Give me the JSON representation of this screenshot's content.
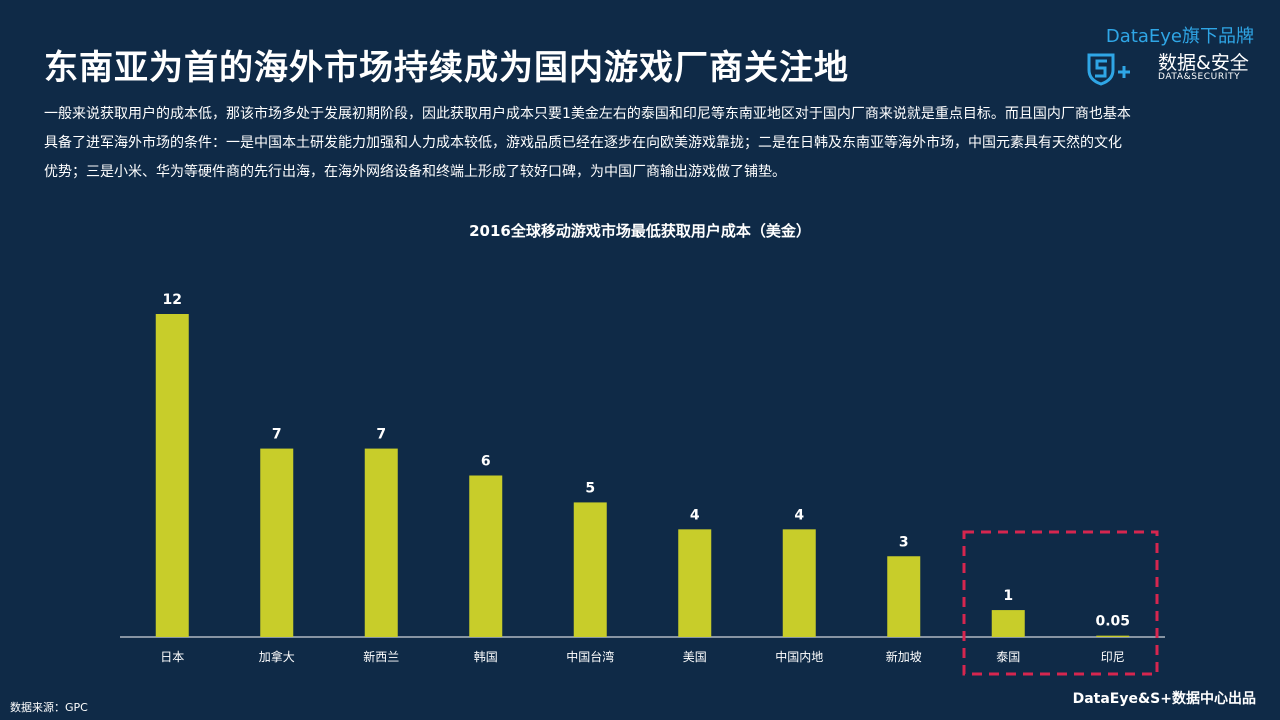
{
  "header": {
    "title": "东南亚为首的海外市场持续成为国内游戏厂商关注地",
    "brand_top": "DataEye旗下品牌",
    "brand_name": "数据&安全",
    "brand_sub": "DATA&SECURITY"
  },
  "intro": "一般来说获取用户的成本低，那该市场多处于发展初期阶段，因此获取用户成本只要1美金左右的泰国和印尼等东南亚地区对于国内厂商来说就是重点目标。而且国内厂商也基本具备了进军海外市场的条件：一是中国本土研发能力加强和人力成本较低，游戏品质已经在逐步在向欧美游戏靠拢；二是在日韩及东南亚等海外市场，中国元素具有天然的文化优势；三是小米、华为等硬件商的先行出海，在海外网络设备和终端上形成了较好口碑，为中国厂商输出游戏做了铺垫。",
  "chart_data": {
    "type": "bar",
    "title": "2016全球移动游戏市场最低获取用户成本（美金）",
    "categories": [
      "日本",
      "加拿大",
      "新西兰",
      "韩国",
      "中国台湾",
      "美国",
      "中国内地",
      "新加坡",
      "泰国",
      "印尼"
    ],
    "values": [
      12,
      7,
      7,
      6,
      5,
      4,
      4,
      3,
      1,
      0.05
    ],
    "data_labels": [
      "12",
      "7",
      "7",
      "6",
      "5",
      "4",
      "4",
      "3",
      "1",
      "0.05"
    ],
    "xlabel": "",
    "ylabel": "",
    "ylim": [
      0,
      12
    ],
    "grid": false,
    "highlighted_categories": [
      "泰国",
      "印尼"
    ],
    "colors": {
      "bar": "#c8cd2a",
      "highlight_box": "#d6264f",
      "axis": "#ffffff"
    }
  },
  "footer": {
    "source": "数据来源：GPC",
    "credit": "DataEye&S+数据中心出品"
  },
  "icons": [
    "shield-s-plus-icon"
  ]
}
